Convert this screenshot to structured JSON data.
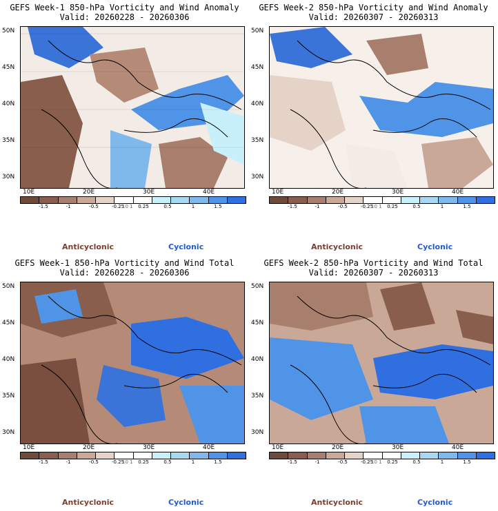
{
  "panels": [
    {
      "id": "p1",
      "title_line1": "GEFS Week-1 850-hPa Vorticity and Wind Anomaly",
      "title_line2": "Valid: 20260228 - 20260306"
    },
    {
      "id": "p2",
      "title_line1": "GEFS Week-2 850-hPa Vorticity and Wind Anomaly",
      "title_line2": "Valid: 20260307 - 20260313"
    },
    {
      "id": "p3",
      "title_line1": "GEFS Week-1 850-hPa Vorticity and Wind Total",
      "title_line2": "Valid: 20260228 - 20260306"
    },
    {
      "id": "p4",
      "title_line1": "GEFS Week-2 850-hPa Vorticity and Wind Total",
      "title_line2": "Valid: 20260307 - 20260313"
    }
  ],
  "lat_labels": [
    "50N",
    "45N",
    "40N",
    "35N",
    "30N"
  ],
  "lon_labels": [
    "10E",
    "20E",
    "30E",
    "40E"
  ],
  "colorbar": {
    "ticks": [
      "-1.5",
      "-1",
      "-0.5",
      "-0.25",
      "0.25",
      "0.5",
      "1",
      "1.5"
    ],
    "colors": [
      "#6e4a3a",
      "#8a5e4d",
      "#a87e6c",
      "#c9a898",
      "#e6d3c8",
      "#ffffff",
      "#ffffff",
      "#c8f0fa",
      "#a8d8f0",
      "#7fb8ea",
      "#4f94e6",
      "#2f6fe0"
    ]
  },
  "legend": {
    "anticyclonic": "Anticyclonic",
    "cyclonic": "Cyclonic",
    "scale_text": "10 1"
  }
}
